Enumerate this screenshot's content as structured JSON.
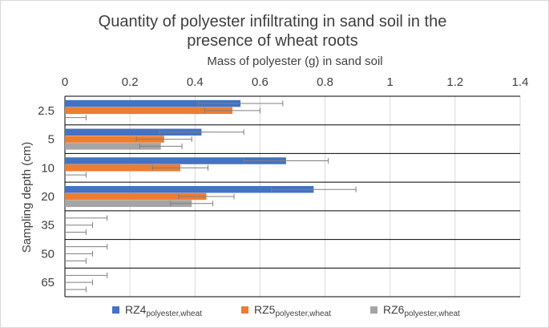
{
  "chart_data": {
    "type": "bar",
    "orientation": "horizontal",
    "title": "Quantity of polyester infiltrating in sand soil in the presence of wheat roots",
    "title_lines": [
      "Quantity of polyester infiltrating in sand soil in the",
      "presence of wheat roots"
    ],
    "xlabel": "Mass of polyester (g) in sand soil",
    "ylabel": "Sampling depth (cm)",
    "xlim": [
      0,
      1.4
    ],
    "x_ticks": [
      "0",
      "0.2",
      "0.4",
      "0.6",
      "0.8",
      "1",
      "1.2",
      "1.4"
    ],
    "x_tick_values": [
      0,
      0.2,
      0.4,
      0.6,
      0.8,
      1.0,
      1.2,
      1.4
    ],
    "x_axis_position": "top",
    "categories": [
      "2.5",
      "5",
      "10",
      "20",
      "35",
      "50",
      "65"
    ],
    "grid": true,
    "legend_position": "bottom",
    "series": [
      {
        "name": "RZ4",
        "name_sub": "polyester,wheat",
        "color": "#4472c4",
        "values": [
          0.54,
          0.42,
          0.68,
          0.765,
          0,
          0,
          0
        ],
        "errors": [
          0.13,
          0.13,
          0.13,
          0.13,
          0.13,
          0.13,
          0.13
        ]
      },
      {
        "name": "RZ5",
        "name_sub": "polyester,wheat",
        "color": "#ed7d31",
        "values": [
          0.515,
          0.305,
          0.355,
          0.435,
          0,
          0,
          0
        ],
        "errors": [
          0.085,
          0.085,
          0.085,
          0.085,
          0.085,
          0.085,
          0.085
        ]
      },
      {
        "name": "RZ6",
        "name_sub": "polyester,wheat",
        "color": "#a5a5a5",
        "values": [
          0,
          0.295,
          0,
          0.39,
          0,
          0,
          0
        ],
        "errors": [
          0.065,
          0.065,
          0.065,
          0.065,
          0.065,
          0.065,
          0.065
        ]
      }
    ]
  }
}
